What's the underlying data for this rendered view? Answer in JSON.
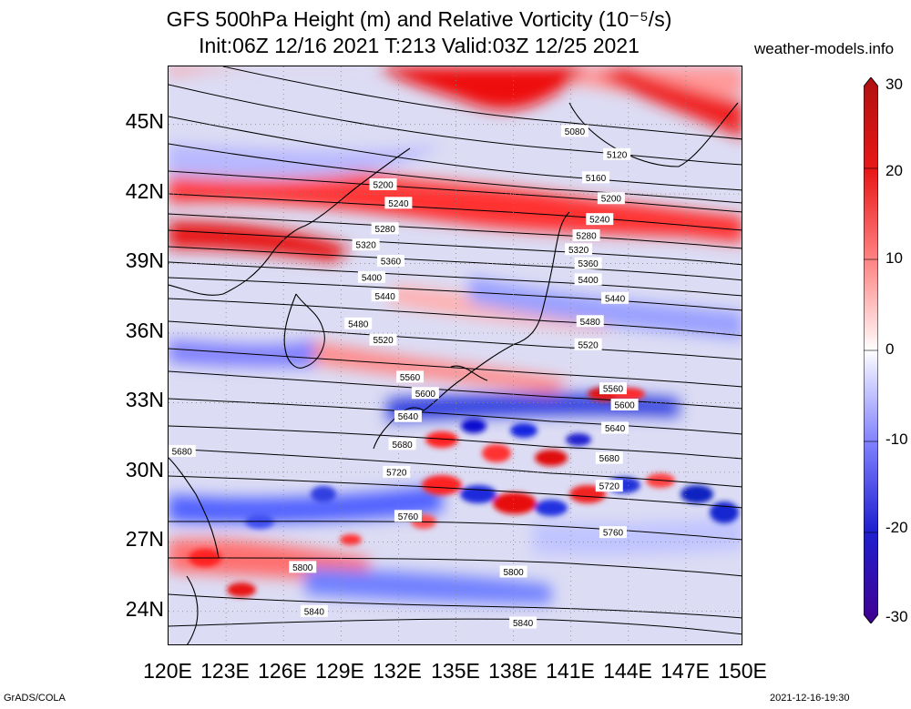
{
  "header": {
    "title_line1": "GFS 500hPa Height (m) and Relative Vorticity (10⁻⁵/s)",
    "title_line2": "Init:06Z 12/16 2021 T:213 Valid:03Z 12/25 2021",
    "site": "weather-models.info"
  },
  "map": {
    "lon_range": [
      120,
      150
    ],
    "lat_range": [
      22.5,
      47.5
    ],
    "lat_labels": [
      "45N",
      "42N",
      "39N",
      "36N",
      "33N",
      "30N",
      "27N",
      "24N"
    ],
    "lon_labels": [
      "120E",
      "123E",
      "126E",
      "129E",
      "132E",
      "135E",
      "138E",
      "141E",
      "144E",
      "147E",
      "150E"
    ],
    "contour_labels": [
      {
        "text": "5080",
        "lon": 141.2,
        "lat": 44.7
      },
      {
        "text": "5120",
        "lon": 143.4,
        "lat": 43.7
      },
      {
        "text": "5160",
        "lon": 142.3,
        "lat": 42.7
      },
      {
        "text": "5200",
        "lon": 131.2,
        "lat": 42.4
      },
      {
        "text": "5200",
        "lon": 143.1,
        "lat": 41.8
      },
      {
        "text": "5240",
        "lon": 132.0,
        "lat": 41.6
      },
      {
        "text": "5240",
        "lon": 142.5,
        "lat": 40.9
      },
      {
        "text": "5280",
        "lon": 131.3,
        "lat": 40.5
      },
      {
        "text": "5280",
        "lon": 141.8,
        "lat": 40.2
      },
      {
        "text": "5320",
        "lon": 130.3,
        "lat": 39.8
      },
      {
        "text": "5320",
        "lon": 141.4,
        "lat": 39.6
      },
      {
        "text": "5360",
        "lon": 131.6,
        "lat": 39.1
      },
      {
        "text": "5360",
        "lon": 141.9,
        "lat": 39.0
      },
      {
        "text": "5400",
        "lon": 130.6,
        "lat": 38.4
      },
      {
        "text": "5400",
        "lon": 141.9,
        "lat": 38.3
      },
      {
        "text": "5440",
        "lon": 131.3,
        "lat": 37.6
      },
      {
        "text": "5440",
        "lon": 143.3,
        "lat": 37.5
      },
      {
        "text": "5480",
        "lon": 129.9,
        "lat": 36.4
      },
      {
        "text": "5480",
        "lon": 142.0,
        "lat": 36.5
      },
      {
        "text": "5520",
        "lon": 131.2,
        "lat": 35.7
      },
      {
        "text": "5520",
        "lon": 141.9,
        "lat": 35.5
      },
      {
        "text": "5560",
        "lon": 132.6,
        "lat": 34.1
      },
      {
        "text": "5560",
        "lon": 143.2,
        "lat": 33.6
      },
      {
        "text": "5600",
        "lon": 133.4,
        "lat": 33.4
      },
      {
        "text": "5600",
        "lon": 143.8,
        "lat": 32.9
      },
      {
        "text": "5640",
        "lon": 132.5,
        "lat": 32.4
      },
      {
        "text": "5640",
        "lon": 143.3,
        "lat": 31.9
      },
      {
        "text": "5680",
        "lon": 120.7,
        "lat": 30.9
      },
      {
        "text": "5680",
        "lon": 132.2,
        "lat": 31.2
      },
      {
        "text": "5680",
        "lon": 143.0,
        "lat": 30.6
      },
      {
        "text": "5720",
        "lon": 131.9,
        "lat": 30.0
      },
      {
        "text": "5720",
        "lon": 143.0,
        "lat": 29.4
      },
      {
        "text": "5760",
        "lon": 132.5,
        "lat": 28.1
      },
      {
        "text": "5760",
        "lon": 143.2,
        "lat": 27.4
      },
      {
        "text": "5800",
        "lon": 127.0,
        "lat": 25.9
      },
      {
        "text": "5800",
        "lon": 138.0,
        "lat": 25.7
      },
      {
        "text": "5840",
        "lon": 127.6,
        "lat": 24.0
      },
      {
        "text": "5840",
        "lon": 138.5,
        "lat": 23.5
      }
    ]
  },
  "colorbar": {
    "labels": [
      "30",
      "20",
      "10",
      "0",
      "-10",
      "-20",
      "-30"
    ]
  },
  "footer": {
    "credit": "GrADS/COLA",
    "timestamp": "2021-12-16-19:30"
  }
}
